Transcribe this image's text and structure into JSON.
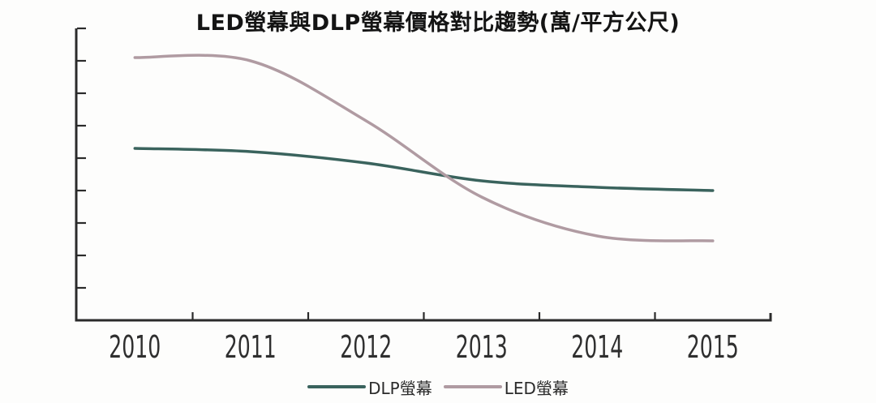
{
  "chart_data": {
    "type": "line",
    "title": "LED螢幕與DLP螢幕價格對比趨勢(萬/平方公尺)",
    "categories": [
      "2010",
      "2011",
      "2012",
      "2013",
      "2014",
      "2015"
    ],
    "series": [
      {
        "name": "DLP螢幕",
        "color": "#3a635d",
        "values": [
          5.3,
          5.2,
          4.85,
          4.3,
          4.1,
          4.0
        ]
      },
      {
        "name": "LED螢幕",
        "color": "#b09ba2",
        "values": [
          8.1,
          8.0,
          6.15,
          3.8,
          2.6,
          2.45
        ]
      }
    ],
    "x_axis": {
      "labels_visible": true,
      "tick_style": "inward-between-categories"
    },
    "y_axis": {
      "min": 0,
      "max": 9,
      "tick_step": 1,
      "labels_visible": false
    },
    "legend": {
      "position": "bottom-center"
    },
    "grid": false,
    "curve": "smooth",
    "axis_color": "#2b2b2b",
    "label_color": "#2f2f2f",
    "background": "#fdfdfc"
  }
}
